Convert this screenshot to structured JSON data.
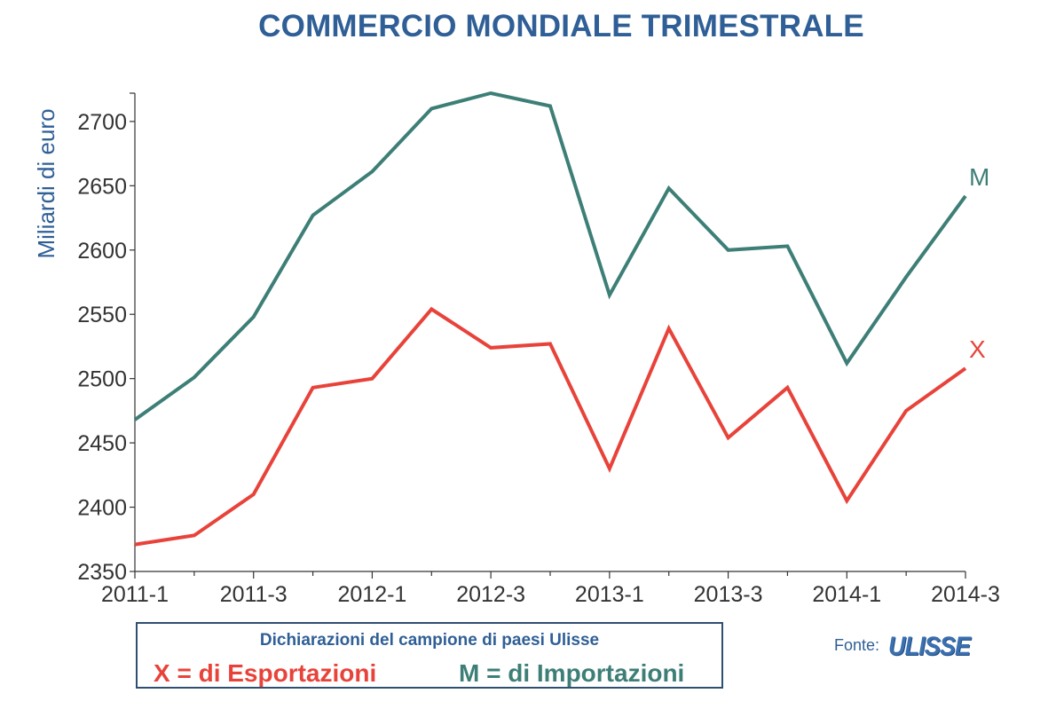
{
  "chart_data": {
    "type": "line",
    "title": "COMMERCIO MONDIALE TRIMESTRALE",
    "ylabel": "Miliardi di euro",
    "xlabel": "",
    "x": [
      "2011-1",
      "2011-2",
      "2011-3",
      "2011-4",
      "2012-1",
      "2012-2",
      "2012-3",
      "2012-4",
      "2013-1",
      "2013-2",
      "2013-3",
      "2013-4",
      "2014-1",
      "2014-2",
      "2014-3"
    ],
    "x_tick_labels": [
      "2011-1",
      "2011-3",
      "2012-1",
      "2012-3",
      "2013-1",
      "2013-3",
      "2014-1",
      "2014-3"
    ],
    "y_ticks": [
      2350,
      2400,
      2450,
      2500,
      2550,
      2600,
      2650,
      2700
    ],
    "ylim": [
      2350,
      2722
    ],
    "grid": false,
    "series": [
      {
        "name": "M",
        "color": "#3d7f77",
        "values": [
          2468,
          2501,
          2548,
          2627,
          2661,
          2710,
          2722,
          2712,
          2565,
          2648,
          2600,
          2603,
          2512,
          2579,
          2642
        ]
      },
      {
        "name": "X",
        "color": "#e8433a",
        "values": [
          2371,
          2378,
          2410,
          2493,
          2500,
          2554,
          2524,
          2527,
          2430,
          2539,
          2454,
          2493,
          2405,
          2475,
          2508
        ]
      }
    ]
  },
  "legend": {
    "title": "Dichiarazioni del campione di paesi Ulisse",
    "x_text": "X = di Esportazioni",
    "m_text": "M = di Importazioni"
  },
  "source": {
    "label": "Fonte:",
    "logo_text": "ULISSE"
  }
}
